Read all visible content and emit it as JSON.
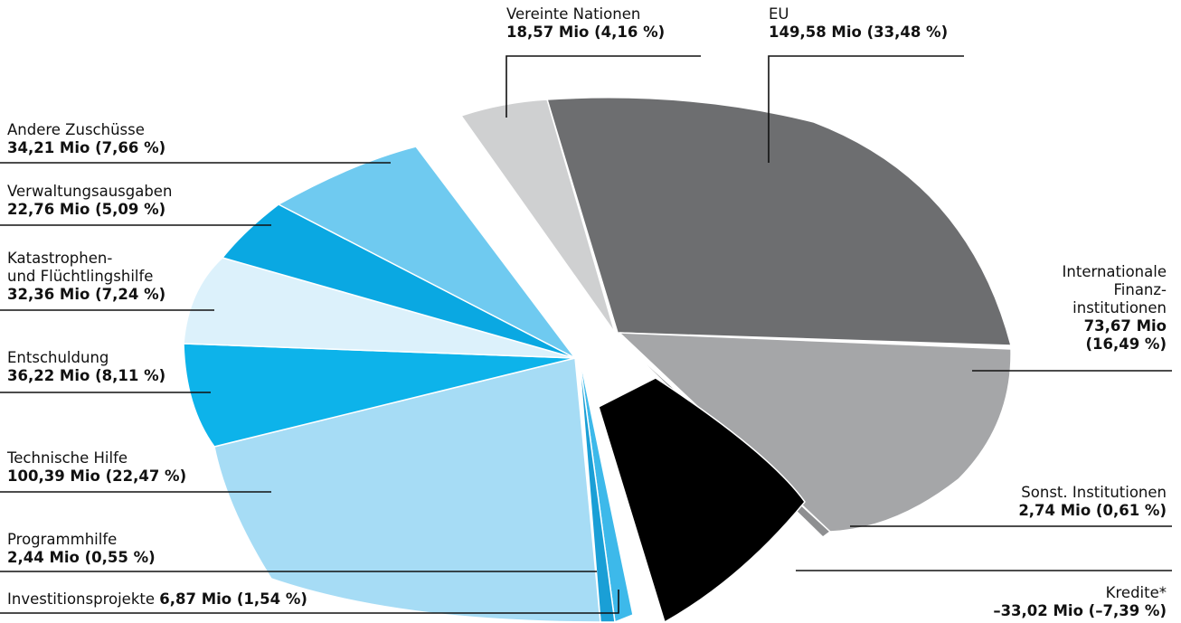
{
  "chart_data": {
    "type": "pie",
    "slices": [
      {
        "name": "EU",
        "value": 149.58,
        "percent": 33.48,
        "value_label": "149,58 Mio (33,48 %)",
        "color": "#6d6e70"
      },
      {
        "name": "Internationale Finanzinstitutionen",
        "name_lines": [
          "Internationale",
          "Finanz-",
          "institutionen"
        ],
        "value": 73.67,
        "percent": 16.49,
        "value_lines": [
          "73,67 Mio",
          "(16,49 %)"
        ],
        "color": "#a5a6a8"
      },
      {
        "name": "Sonst. Institutionen",
        "value": 2.74,
        "percent": 0.61,
        "value_label": "2,74 Mio (0,61 %)",
        "color": "#8e8f91"
      },
      {
        "name": "Kredite*",
        "value": -33.02,
        "percent": -7.39,
        "value_label": "–33,02 Mio (–7,39 %)",
        "color": "#000000"
      },
      {
        "name": "Investitionsprojekte",
        "value": 6.87,
        "percent": 1.54,
        "value_label": "6,87 Mio (1,54 %)",
        "color": "#3db9ea"
      },
      {
        "name": "Programmhilfe",
        "value": 2.44,
        "percent": 0.55,
        "value_label": "2,44 Mio (0,55 %)",
        "color": "#1a9fd6"
      },
      {
        "name": "Technische Hilfe",
        "value": 100.39,
        "percent": 22.47,
        "value_label": "100,39 Mio (22,47 %)",
        "color": "#a6dcf5"
      },
      {
        "name": "Entschuldung",
        "value": 36.22,
        "percent": 8.11,
        "value_label": "36,22 Mio (8,11 %)",
        "color": "#0db3ea"
      },
      {
        "name": "Katastrophen- und Flüchtlingshilfe",
        "name_lines": [
          "Katastrophen-",
          "und Flüchtlingshilfe"
        ],
        "value": 32.36,
        "percent": 7.24,
        "value_label": "32,36 Mio (7,24 %)",
        "color": "#dcf1fb"
      },
      {
        "name": "Verwaltungsausgaben",
        "value": 22.76,
        "percent": 5.09,
        "value_label": "22,76 Mio (5,09 %)",
        "color": "#0aa8e2"
      },
      {
        "name": "Andere Zuschüsse",
        "value": 34.21,
        "percent": 7.66,
        "value_label": "34,21 Mio (7,66 %)",
        "color": "#6fcaf0"
      },
      {
        "name": "Vereinte Nationen",
        "value": 18.57,
        "percent": 4.16,
        "value_label": "18,57 Mio (4,16 %)",
        "color": "#cfd0d1"
      }
    ]
  }
}
